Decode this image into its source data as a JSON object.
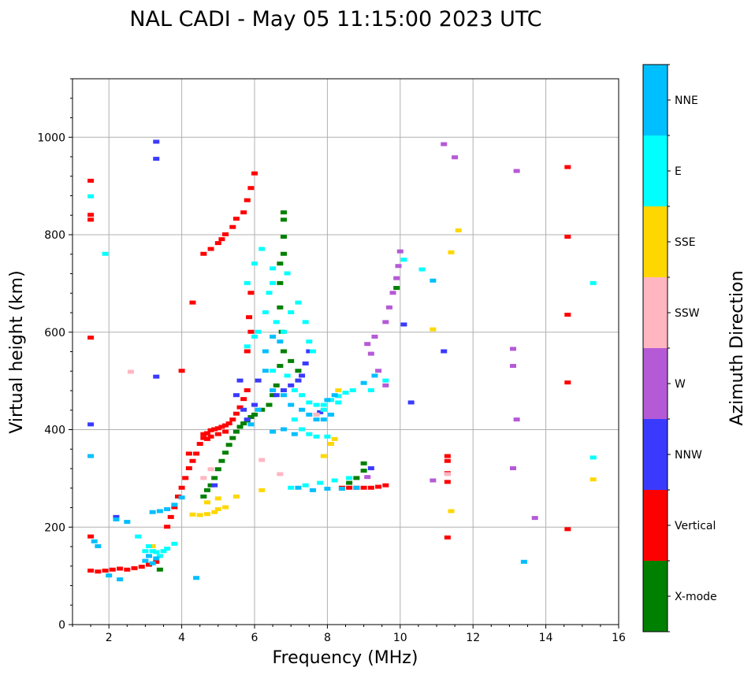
{
  "chart_data": {
    "type": "scatter",
    "title": "NAL CADI - May 05 11:15:00 2023 UTC",
    "xlabel": "Frequency (MHz)",
    "ylabel": "Virtual height (km)",
    "xlim": [
      1,
      16
    ],
    "ylim": [
      0,
      1120
    ],
    "xticks": [
      2,
      4,
      6,
      8,
      10,
      12,
      14,
      16
    ],
    "yticks": [
      0,
      200,
      400,
      600,
      800,
      1000
    ],
    "grid": true,
    "colorbar": {
      "label": "Azimuth Direction",
      "categories": [
        {
          "name": "X-mode",
          "color": "#008000"
        },
        {
          "name": "Vertical",
          "color": "#ff0000"
        },
        {
          "name": "NNW",
          "color": "#3a3aff"
        },
        {
          "name": "W",
          "color": "#b55ad6"
        },
        {
          "name": "SSW",
          "color": "#ffb6c1"
        },
        {
          "name": "SSE",
          "color": "#ffd700"
        },
        {
          "name": "E",
          "color": "#00ffff"
        },
        {
          "name": "NNE",
          "color": "#00bfff"
        }
      ]
    },
    "series": [
      {
        "name": "Vertical",
        "color": "#ff0000",
        "points": [
          [
            1.5,
            110
          ],
          [
            1.7,
            108
          ],
          [
            1.9,
            110
          ],
          [
            2.1,
            112
          ],
          [
            2.3,
            114
          ],
          [
            2.5,
            112
          ],
          [
            2.7,
            115
          ],
          [
            2.9,
            118
          ],
          [
            3.1,
            122
          ],
          [
            3.3,
            128
          ],
          [
            3.6,
            200
          ],
          [
            3.7,
            220
          ],
          [
            3.8,
            240
          ],
          [
            3.9,
            262
          ],
          [
            4.0,
            280
          ],
          [
            4.1,
            300
          ],
          [
            4.2,
            320
          ],
          [
            4.3,
            335
          ],
          [
            4.4,
            350
          ],
          [
            4.5,
            370
          ],
          [
            4.6,
            382
          ],
          [
            4.7,
            392
          ],
          [
            4.8,
            398
          ],
          [
            4.9,
            400
          ],
          [
            5.0,
            402
          ],
          [
            5.1,
            405
          ],
          [
            5.2,
            408
          ],
          [
            5.3,
            412
          ],
          [
            5.4,
            420
          ],
          [
            5.5,
            432
          ],
          [
            5.6,
            445
          ],
          [
            5.7,
            462
          ],
          [
            5.8,
            480
          ],
          [
            4.6,
            390
          ],
          [
            4.7,
            380
          ],
          [
            4.8,
            385
          ],
          [
            5.0,
            390
          ],
          [
            5.2,
            395
          ],
          [
            4.6,
            760
          ],
          [
            4.8,
            770
          ],
          [
            5.0,
            782
          ],
          [
            5.1,
            790
          ],
          [
            5.2,
            800
          ],
          [
            5.4,
            815
          ],
          [
            5.5,
            832
          ],
          [
            5.7,
            845
          ],
          [
            5.8,
            870
          ],
          [
            5.9,
            895
          ],
          [
            6.0,
            925
          ],
          [
            5.9,
            680
          ],
          [
            5.85,
            630
          ],
          [
            5.9,
            600
          ],
          [
            5.8,
            560
          ],
          [
            4.3,
            660
          ],
          [
            4.0,
            520
          ],
          [
            4.2,
            350
          ],
          [
            1.5,
            910
          ],
          [
            1.5,
            840
          ],
          [
            1.5,
            830
          ],
          [
            1.5,
            588
          ],
          [
            1.5,
            180
          ],
          [
            8.4,
            280
          ],
          [
            8.6,
            280
          ],
          [
            8.8,
            280
          ],
          [
            9.0,
            280
          ],
          [
            9.2,
            280
          ],
          [
            9.4,
            282
          ],
          [
            9.6,
            285
          ],
          [
            11.3,
            345
          ],
          [
            11.3,
            335
          ],
          [
            11.3,
            310
          ],
          [
            11.3,
            292
          ],
          [
            11.3,
            178
          ],
          [
            14.6,
            938
          ],
          [
            14.6,
            795
          ],
          [
            14.6,
            635
          ],
          [
            14.6,
            496
          ],
          [
            14.6,
            195
          ]
        ]
      },
      {
        "name": "X-mode",
        "color": "#008000",
        "points": [
          [
            4.6,
            262
          ],
          [
            4.7,
            275
          ],
          [
            4.8,
            285
          ],
          [
            4.9,
            300
          ],
          [
            5.0,
            318
          ],
          [
            5.1,
            335
          ],
          [
            5.2,
            352
          ],
          [
            5.3,
            368
          ],
          [
            5.4,
            382
          ],
          [
            5.5,
            395
          ],
          [
            5.6,
            405
          ],
          [
            5.7,
            412
          ],
          [
            5.8,
            418
          ],
          [
            5.9,
            425
          ],
          [
            6.0,
            430
          ],
          [
            6.2,
            440
          ],
          [
            6.4,
            450
          ],
          [
            6.5,
            470
          ],
          [
            6.6,
            490
          ],
          [
            6.7,
            530
          ],
          [
            6.8,
            560
          ],
          [
            6.75,
            600
          ],
          [
            6.7,
            650
          ],
          [
            6.7,
            700
          ],
          [
            6.7,
            740
          ],
          [
            6.8,
            760
          ],
          [
            7.0,
            540
          ],
          [
            7.2,
            520
          ],
          [
            6.8,
            845
          ],
          [
            6.8,
            830
          ],
          [
            6.8,
            795
          ],
          [
            3.4,
            112
          ],
          [
            8.6,
            290
          ],
          [
            8.8,
            300
          ],
          [
            9.0,
            315
          ],
          [
            9.0,
            330
          ],
          [
            9.9,
            690
          ]
        ]
      },
      {
        "name": "NNW",
        "color": "#3a3aff",
        "points": [
          [
            3.3,
            990
          ],
          [
            3.3,
            955
          ],
          [
            3.3,
            508
          ],
          [
            5.6,
            500
          ],
          [
            5.5,
            470
          ],
          [
            5.7,
            440
          ],
          [
            5.8,
            420
          ],
          [
            6.0,
            450
          ],
          [
            6.1,
            500
          ],
          [
            6.6,
            470
          ],
          [
            6.8,
            480
          ],
          [
            7.0,
            490
          ],
          [
            7.2,
            500
          ],
          [
            7.3,
            510
          ],
          [
            7.4,
            535
          ],
          [
            7.5,
            560
          ],
          [
            10.1,
            615
          ],
          [
            10.3,
            455
          ],
          [
            11.2,
            560
          ],
          [
            9.2,
            320
          ],
          [
            7.8,
            435
          ],
          [
            1.5,
            410
          ],
          [
            2.2,
            220
          ],
          [
            4.9,
            285
          ]
        ]
      },
      {
        "name": "W",
        "color": "#b55ad6",
        "points": [
          [
            9.6,
            490
          ],
          [
            9.4,
            520
          ],
          [
            9.2,
            555
          ],
          [
            9.1,
            575
          ],
          [
            9.3,
            590
          ],
          [
            9.6,
            620
          ],
          [
            9.7,
            650
          ],
          [
            9.8,
            680
          ],
          [
            9.9,
            710
          ],
          [
            9.95,
            735
          ],
          [
            10.0,
            765
          ],
          [
            10.9,
            295
          ],
          [
            11.2,
            985
          ],
          [
            11.5,
            958
          ],
          [
            13.2,
            930
          ],
          [
            13.1,
            565
          ],
          [
            13.1,
            530
          ],
          [
            13.2,
            420
          ],
          [
            13.1,
            320
          ],
          [
            13.7,
            218
          ],
          [
            9.1,
            302
          ]
        ]
      },
      {
        "name": "SSW",
        "color": "#ffb6c1",
        "points": [
          [
            2.6,
            518
          ],
          [
            4.6,
            300
          ],
          [
            4.8,
            318
          ],
          [
            6.2,
            337
          ],
          [
            6.7,
            308
          ],
          [
            11.3,
            308
          ],
          [
            7.7,
            430
          ],
          [
            7.9,
            440
          ]
        ]
      },
      {
        "name": "SSE",
        "color": "#ffd700",
        "points": [
          [
            4.3,
            225
          ],
          [
            4.5,
            224
          ],
          [
            4.7,
            226
          ],
          [
            4.9,
            230
          ],
          [
            5.0,
            236
          ],
          [
            5.2,
            240
          ],
          [
            5.5,
            262
          ],
          [
            5.0,
            258
          ],
          [
            4.7,
            250
          ],
          [
            6.2,
            275
          ],
          [
            7.9,
            345
          ],
          [
            8.1,
            370
          ],
          [
            8.2,
            380
          ],
          [
            8.3,
            480
          ],
          [
            10.9,
            605
          ],
          [
            11.4,
            763
          ],
          [
            11.6,
            808
          ],
          [
            11.4,
            232
          ],
          [
            15.3,
            297
          ],
          [
            3.2,
            160
          ]
        ]
      },
      {
        "name": "E",
        "color": "#00ffff",
        "points": [
          [
            1.5,
            878
          ],
          [
            1.9,
            760
          ],
          [
            2.8,
            180
          ],
          [
            3.0,
            150
          ],
          [
            3.1,
            160
          ],
          [
            3.2,
            150
          ],
          [
            3.3,
            148
          ],
          [
            3.4,
            140
          ],
          [
            3.5,
            150
          ],
          [
            3.6,
            155
          ],
          [
            3.8,
            165
          ],
          [
            5.8,
            570
          ],
          [
            6.0,
            590
          ],
          [
            6.1,
            600
          ],
          [
            6.3,
            640
          ],
          [
            6.4,
            680
          ],
          [
            6.5,
            700
          ],
          [
            6.6,
            620
          ],
          [
            6.8,
            600
          ],
          [
            7.0,
            640
          ],
          [
            7.2,
            660
          ],
          [
            7.4,
            620
          ],
          [
            7.5,
            580
          ],
          [
            7.6,
            560
          ],
          [
            6.5,
            520
          ],
          [
            6.9,
            510
          ],
          [
            7.1,
            480
          ],
          [
            7.3,
            470
          ],
          [
            7.5,
            455
          ],
          [
            7.7,
            450
          ],
          [
            7.9,
            450
          ],
          [
            8.1,
            460
          ],
          [
            8.3,
            468
          ],
          [
            8.5,
            475
          ],
          [
            8.7,
            480
          ],
          [
            7.1,
            420
          ],
          [
            7.3,
            400
          ],
          [
            7.5,
            390
          ],
          [
            7.7,
            385
          ],
          [
            8.0,
            385
          ],
          [
            7.0,
            280
          ],
          [
            7.4,
            285
          ],
          [
            7.8,
            290
          ],
          [
            8.2,
            295
          ],
          [
            8.6,
            300
          ],
          [
            8.1,
            460
          ],
          [
            7.9,
            440
          ],
          [
            8.3,
            455
          ],
          [
            5.8,
            700
          ],
          [
            6.0,
            740
          ],
          [
            6.2,
            770
          ],
          [
            6.5,
            730
          ],
          [
            6.9,
            720
          ],
          [
            15.3,
            700
          ],
          [
            15.3,
            342
          ],
          [
            10.6,
            728
          ],
          [
            10.1,
            748
          ],
          [
            9.2,
            480
          ],
          [
            9.6,
            500
          ]
        ]
      },
      {
        "name": "NNE",
        "color": "#00bfff",
        "points": [
          [
            1.5,
            345
          ],
          [
            1.6,
            170
          ],
          [
            1.7,
            160
          ],
          [
            2.0,
            100
          ],
          [
            2.3,
            92
          ],
          [
            3.1,
            140
          ],
          [
            3.0,
            130
          ],
          [
            3.2,
            125
          ],
          [
            3.3,
            135
          ],
          [
            2.2,
            215
          ],
          [
            2.5,
            210
          ],
          [
            3.2,
            230
          ],
          [
            3.4,
            232
          ],
          [
            3.6,
            236
          ],
          [
            3.8,
            245
          ],
          [
            4.0,
            260
          ],
          [
            4.4,
            95
          ],
          [
            6.3,
            560
          ],
          [
            6.5,
            590
          ],
          [
            6.7,
            580
          ],
          [
            6.3,
            520
          ],
          [
            6.5,
            480
          ],
          [
            6.8,
            470
          ],
          [
            7.0,
            450
          ],
          [
            7.3,
            440
          ],
          [
            7.5,
            430
          ],
          [
            7.7,
            420
          ],
          [
            7.9,
            420
          ],
          [
            8.1,
            430
          ],
          [
            7.2,
            280
          ],
          [
            7.6,
            275
          ],
          [
            8.0,
            278
          ],
          [
            8.4,
            278
          ],
          [
            8.8,
            280
          ],
          [
            6.5,
            395
          ],
          [
            6.8,
            400
          ],
          [
            7.1,
            390
          ],
          [
            8.2,
            470
          ],
          [
            8.0,
            460
          ],
          [
            9.0,
            495
          ],
          [
            9.3,
            510
          ],
          [
            13.4,
            128
          ],
          [
            10.9,
            705
          ],
          [
            5.9,
            410
          ],
          [
            6.1,
            440
          ]
        ]
      }
    ]
  }
}
